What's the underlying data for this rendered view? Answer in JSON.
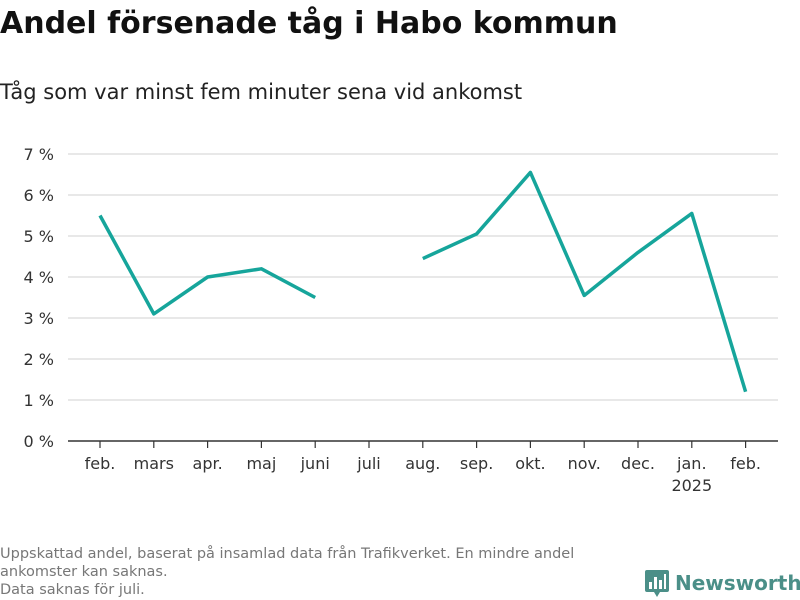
{
  "title": "Andel försenade tåg i Habo kommun",
  "subtitle": "Tåg som var minst fem minuter sena vid ankomst",
  "footnote": {
    "line1": "Uppskattad andel, baserat på insamlad data från Trafikverket. En mindre andel ankomster kan saknas.",
    "line2": "Data saknas för juli."
  },
  "brand": {
    "name": "Newsworthy",
    "icon": "bar-chart-logo-icon"
  },
  "colors": {
    "line": "#16a59b",
    "grid": "#d9d9d9",
    "axis": "#333333",
    "brand": "#4b8f88"
  },
  "chart_data": {
    "type": "line",
    "title": "Andel försenade tåg i Habo kommun",
    "subtitle": "Tåg som var minst fem minuter sena vid ankomst",
    "categories": [
      "feb.",
      "mars",
      "apr.",
      "maj",
      "juni",
      "juli",
      "aug.",
      "sep.",
      "okt.",
      "nov.",
      "dec.",
      "jan.",
      "feb."
    ],
    "year_label": {
      "category_index": 11,
      "text": "2025"
    },
    "series": [
      {
        "values": [
          5.5,
          3.1,
          4.0,
          4.2,
          3.5,
          null,
          4.45,
          5.05,
          6.55,
          3.55,
          4.6,
          5.55,
          1.2
        ]
      }
    ],
    "y_ticks": [
      0,
      1,
      2,
      3,
      4,
      5,
      6,
      7
    ],
    "y_tick_labels": [
      "0 %",
      "1 %",
      "2 %",
      "3 %",
      "4 %",
      "5 %",
      "6 %",
      "7 %"
    ],
    "ylim": [
      0,
      7
    ],
    "xlabel": "",
    "ylabel": "",
    "grid": true
  }
}
